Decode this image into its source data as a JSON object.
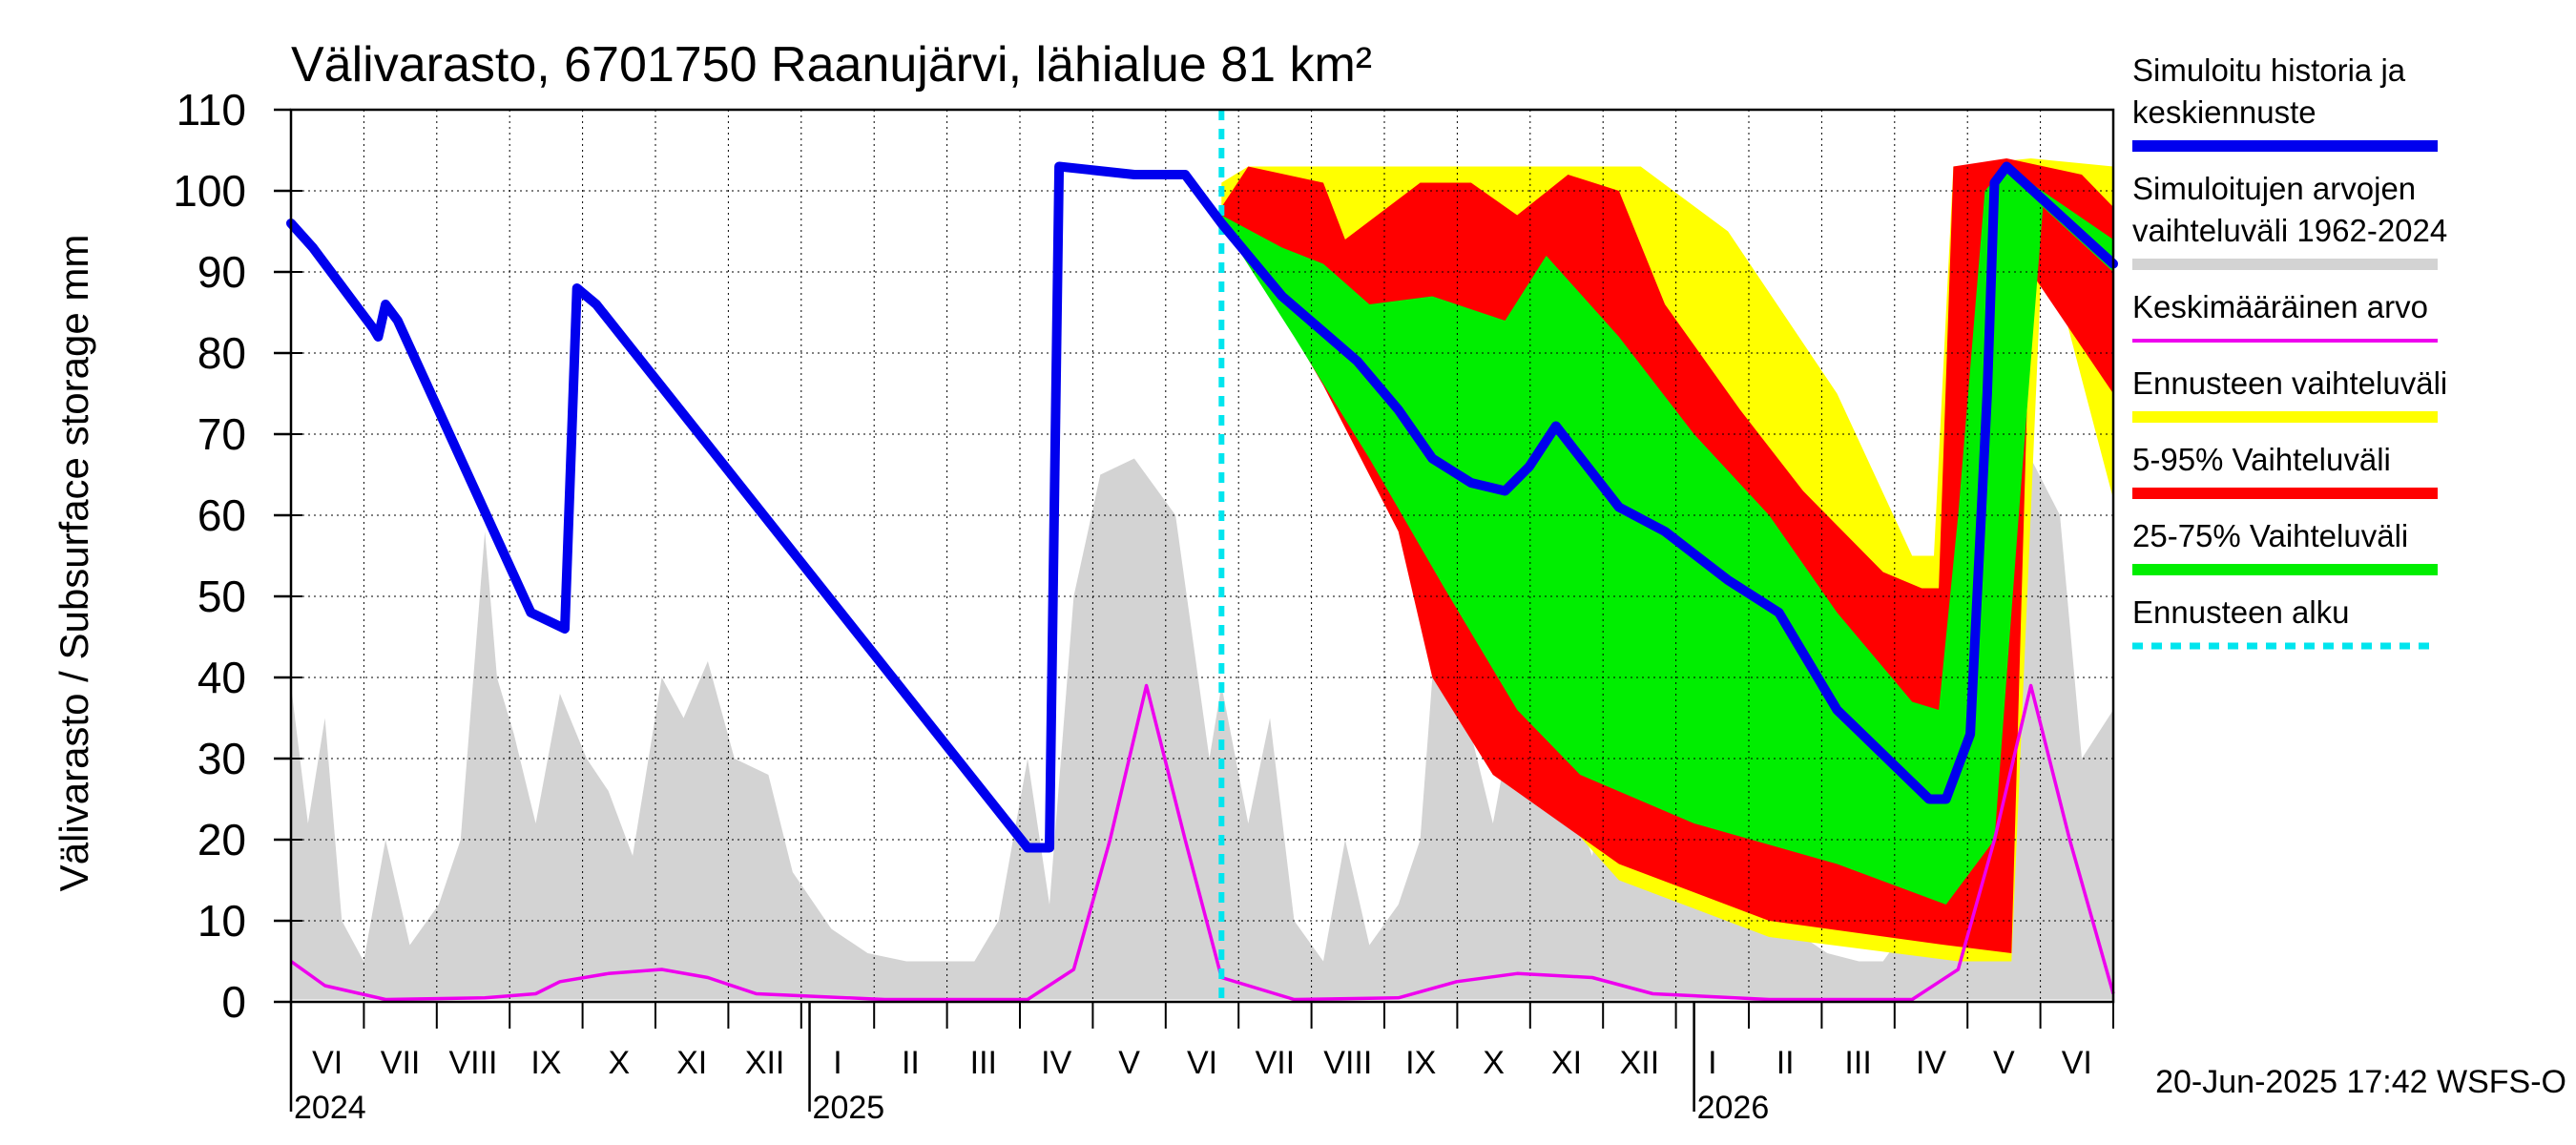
{
  "chart_data": {
    "type": "area",
    "title": "Välivarasto, 6701750 Raanujärvi, lähialue 81 km²",
    "ylabel": "Välivarasto / Subsurface storage  mm",
    "ylim": [
      0,
      110
    ],
    "yticks": [
      0,
      10,
      20,
      30,
      40,
      50,
      60,
      70,
      80,
      90,
      100,
      110
    ],
    "xlim": [
      "2024-06-01",
      "2026-06-23"
    ],
    "grid": true,
    "legend_position": "right",
    "forecast_start": "2025-06-20",
    "months": [
      "VI",
      "VII",
      "VIII",
      "IX",
      "X",
      "XI",
      "XII",
      "I",
      "II",
      "III",
      "IV",
      "V",
      "VI",
      "VII",
      "VIII",
      "IX",
      "X",
      "XI",
      "XII",
      "I",
      "II",
      "III",
      "IV",
      "V",
      "VI"
    ],
    "years": [
      {
        "label": "2024",
        "date": "2024-06-01"
      },
      {
        "label": "2025",
        "date": "2025-01-01"
      },
      {
        "label": "2026",
        "date": "2026-01-01"
      }
    ],
    "footer": "20-Jun-2025 17:42 WSFS-O",
    "colors": {
      "simulated": "#0000ee",
      "range_hist": "#d3d3d3",
      "mean": "#ee00ee",
      "forecast_range": "#ffff00",
      "p5_95": "#ff0000",
      "p25_75": "#00ee00",
      "forecast_start": "#00e5ee"
    },
    "legend": [
      {
        "label": "Simuloitu historia ja keskiennuste",
        "color": "#0000ee",
        "style": "thick"
      },
      {
        "label": "Simuloitujen arvojen vaihteluväli 1962-2024",
        "color": "#d3d3d3",
        "style": "thick"
      },
      {
        "label": "Keskimääräinen arvo",
        "color": "#ee00ee",
        "style": "thin"
      },
      {
        "label": "Ennusteen vaihteluväli",
        "color": "#ffff00",
        "style": "thick"
      },
      {
        "label": "5-95% Vaihteluväli",
        "color": "#ff0000",
        "style": "thick"
      },
      {
        "label": "25-75% Vaihteluväli",
        "color": "#00ee00",
        "style": "thick"
      },
      {
        "label": "Ennusteen alku",
        "color": "#00e5ee",
        "style": "dashed"
      }
    ],
    "series": [
      {
        "name": "Simuloitu historia ja keskiennuste",
        "points": [
          [
            "2024-06-01",
            96
          ],
          [
            "2024-06-10",
            93
          ],
          [
            "2024-07-05",
            83
          ],
          [
            "2024-07-07",
            82
          ],
          [
            "2024-07-10",
            86
          ],
          [
            "2024-07-15",
            84
          ],
          [
            "2024-09-08",
            48
          ],
          [
            "2024-09-15",
            47
          ],
          [
            "2024-09-22",
            46
          ],
          [
            "2024-09-27",
            88
          ],
          [
            "2024-10-05",
            86
          ],
          [
            "2025-04-01",
            19
          ],
          [
            "2025-04-10",
            19
          ],
          [
            "2025-04-14",
            103
          ],
          [
            "2025-05-15",
            102
          ],
          [
            "2025-06-05",
            102
          ],
          [
            "2025-06-20",
            96
          ],
          [
            "2025-07-15",
            87
          ],
          [
            "2025-08-15",
            79
          ],
          [
            "2025-09-01",
            73
          ],
          [
            "2025-09-15",
            67
          ],
          [
            "2025-10-01",
            64
          ],
          [
            "2025-10-15",
            63
          ],
          [
            "2025-10-25",
            66
          ],
          [
            "2025-11-05",
            71
          ],
          [
            "2025-12-01",
            61
          ],
          [
            "2025-12-20",
            58
          ],
          [
            "2026-01-15",
            52
          ],
          [
            "2026-02-05",
            48
          ],
          [
            "2026-03-01",
            36
          ],
          [
            "2026-04-08",
            25
          ],
          [
            "2026-04-15",
            25
          ],
          [
            "2026-04-25",
            33
          ],
          [
            "2026-05-02",
            75
          ],
          [
            "2026-05-05",
            101
          ],
          [
            "2026-05-10",
            103
          ],
          [
            "2026-06-23",
            91
          ]
        ]
      },
      {
        "name": "Keskimääräinen arvo",
        "points": [
          [
            "2024-06-01",
            5
          ],
          [
            "2024-06-15",
            2
          ],
          [
            "2024-07-10",
            0.3
          ],
          [
            "2024-08-20",
            0.5
          ],
          [
            "2024-09-10",
            1
          ],
          [
            "2024-09-20",
            2.5
          ],
          [
            "2024-10-10",
            3.5
          ],
          [
            "2024-11-01",
            4
          ],
          [
            "2024-11-20",
            3
          ],
          [
            "2024-12-10",
            1
          ],
          [
            "2025-02-01",
            0.3
          ],
          [
            "2025-04-01",
            0.3
          ],
          [
            "2025-04-20",
            4
          ],
          [
            "2025-05-05",
            20
          ],
          [
            "2025-05-20",
            39
          ],
          [
            "2025-06-05",
            20
          ],
          [
            "2025-06-20",
            3
          ],
          [
            "2025-07-20",
            0.3
          ],
          [
            "2025-09-01",
            0.5
          ],
          [
            "2025-09-25",
            2.5
          ],
          [
            "2025-10-20",
            3.5
          ],
          [
            "2025-11-20",
            3
          ],
          [
            "2025-12-15",
            1
          ],
          [
            "2026-02-01",
            0.3
          ],
          [
            "2026-04-01",
            0.3
          ],
          [
            "2026-04-20",
            4
          ],
          [
            "2026-05-05",
            20
          ],
          [
            "2026-05-20",
            39
          ],
          [
            "2026-06-05",
            20
          ],
          [
            "2026-06-23",
            1
          ]
        ]
      }
    ],
    "bands": [
      {
        "name": "Ennusteen vaihteluväli",
        "upper": [
          [
            "2025-06-20",
            101
          ],
          [
            "2025-07-01",
            103
          ],
          [
            "2025-09-01",
            103
          ],
          [
            "2025-11-01",
            103
          ],
          [
            "2025-12-10",
            103
          ],
          [
            "2026-01-15",
            95
          ],
          [
            "2026-03-01",
            75
          ],
          [
            "2026-04-01",
            55
          ],
          [
            "2026-04-10",
            55
          ],
          [
            "2026-04-18",
            103
          ],
          [
            "2026-05-20",
            104
          ],
          [
            "2026-06-23",
            103
          ]
        ],
        "lower": [
          [
            "2026-06-23",
            62
          ],
          [
            "2026-05-25",
            95
          ],
          [
            "2026-05-12",
            5
          ],
          [
            "2026-04-20",
            5
          ],
          [
            "2026-02-01",
            8
          ],
          [
            "2025-12-01",
            15
          ],
          [
            "2025-11-01",
            25
          ],
          [
            "2025-10-01",
            38
          ],
          [
            "2025-09-01",
            60
          ],
          [
            "2025-08-01",
            77
          ],
          [
            "2025-07-01",
            91
          ],
          [
            "2025-06-20",
            96
          ]
        ]
      },
      {
        "name": "5-95% Vaihteluväli",
        "upper": [
          [
            "2025-06-20",
            98
          ],
          [
            "2025-07-01",
            103
          ],
          [
            "2025-08-01",
            101
          ],
          [
            "2025-08-10",
            94
          ],
          [
            "2025-09-10",
            101
          ],
          [
            "2025-10-01",
            101
          ],
          [
            "2025-10-20",
            97
          ],
          [
            "2025-11-10",
            102
          ],
          [
            "2025-12-01",
            100
          ],
          [
            "2025-12-20",
            86
          ],
          [
            "2026-01-20",
            73
          ],
          [
            "2026-02-15",
            63
          ],
          [
            "2026-03-20",
            53
          ],
          [
            "2026-04-05",
            51
          ],
          [
            "2026-04-12",
            51
          ],
          [
            "2026-04-18",
            103
          ],
          [
            "2026-05-10",
            104
          ],
          [
            "2026-06-10",
            102
          ],
          [
            "2026-06-23",
            98
          ]
        ],
        "lower": [
          [
            "2026-06-23",
            75
          ],
          [
            "2026-05-20",
            90
          ],
          [
            "2026-05-12",
            6
          ],
          [
            "2026-04-15",
            7
          ],
          [
            "2026-02-01",
            10
          ],
          [
            "2025-12-01",
            17
          ],
          [
            "2025-10-10",
            28
          ],
          [
            "2025-09-15",
            40
          ],
          [
            "2025-09-01",
            58
          ],
          [
            "2025-08-01",
            76
          ],
          [
            "2025-07-01",
            92
          ],
          [
            "2025-06-20",
            97
          ]
        ]
      },
      {
        "name": "25-75% Vaihteluväli",
        "upper": [
          [
            "2025-06-20",
            97
          ],
          [
            "2025-07-15",
            93
          ],
          [
            "2025-08-01",
            91
          ],
          [
            "2025-08-20",
            86
          ],
          [
            "2025-09-15",
            87
          ],
          [
            "2025-10-15",
            84
          ],
          [
            "2025-11-01",
            92
          ],
          [
            "2025-12-01",
            82
          ],
          [
            "2026-01-01",
            70
          ],
          [
            "2026-02-01",
            60
          ],
          [
            "2026-03-01",
            48
          ],
          [
            "2026-04-01",
            37
          ],
          [
            "2026-04-12",
            36
          ],
          [
            "2026-04-20",
            60
          ],
          [
            "2026-05-01",
            100
          ],
          [
            "2026-05-10",
            103
          ],
          [
            "2026-06-23",
            94
          ]
        ],
        "lower": [
          [
            "2026-06-23",
            90
          ],
          [
            "2026-05-25",
            98
          ],
          [
            "2026-05-15",
            60
          ],
          [
            "2026-05-05",
            20
          ],
          [
            "2026-04-15",
            12
          ],
          [
            "2026-03-01",
            17
          ],
          [
            "2026-01-01",
            22
          ],
          [
            "2025-11-15",
            28
          ],
          [
            "2025-10-20",
            36
          ],
          [
            "2025-09-20",
            51
          ],
          [
            "2025-08-20",
            67
          ],
          [
            "2025-07-20",
            82
          ],
          [
            "2025-06-20",
            96
          ]
        ]
      }
    ],
    "hist_range_upper": [
      [
        "2024-06-01",
        39
      ],
      [
        "2024-06-08",
        22
      ],
      [
        "2024-06-15",
        35
      ],
      [
        "2024-06-22",
        10
      ],
      [
        "2024-07-01",
        5
      ],
      [
        "2024-07-10",
        20
      ],
      [
        "2024-07-20",
        7
      ],
      [
        "2024-08-01",
        12
      ],
      [
        "2024-08-10",
        20
      ],
      [
        "2024-08-20",
        58
      ],
      [
        "2024-08-25",
        40
      ],
      [
        "2024-09-01",
        33
      ],
      [
        "2024-09-10",
        22
      ],
      [
        "2024-09-20",
        38
      ],
      [
        "2024-10-01",
        30
      ],
      [
        "2024-10-10",
        26
      ],
      [
        "2024-10-20",
        18
      ],
      [
        "2024-11-01",
        40
      ],
      [
        "2024-11-10",
        35
      ],
      [
        "2024-11-20",
        42
      ],
      [
        "2024-12-01",
        30
      ],
      [
        "2024-12-15",
        28
      ],
      [
        "2024-12-25",
        16
      ],
      [
        "2025-01-10",
        9
      ],
      [
        "2025-01-25",
        6
      ],
      [
        "2025-02-10",
        5
      ],
      [
        "2025-02-25",
        5
      ],
      [
        "2025-03-10",
        5
      ],
      [
        "2025-03-20",
        10
      ],
      [
        "2025-04-01",
        30
      ],
      [
        "2025-04-10",
        12
      ],
      [
        "2025-04-20",
        50
      ],
      [
        "2025-05-01",
        65
      ],
      [
        "2025-05-15",
        67
      ],
      [
        "2025-06-01",
        60
      ],
      [
        "2025-06-15",
        30
      ],
      [
        "2025-06-20",
        39
      ],
      [
        "2025-07-01",
        22
      ],
      [
        "2025-07-10",
        35
      ],
      [
        "2025-07-20",
        10
      ],
      [
        "2025-08-01",
        5
      ],
      [
        "2025-08-10",
        20
      ],
      [
        "2025-08-20",
        7
      ],
      [
        "2025-09-01",
        12
      ],
      [
        "2025-09-10",
        20
      ],
      [
        "2025-09-20",
        60
      ],
      [
        "2025-09-25",
        40
      ],
      [
        "2025-10-01",
        33
      ],
      [
        "2025-10-10",
        22
      ],
      [
        "2025-10-20",
        38
      ],
      [
        "2025-11-01",
        30
      ],
      [
        "2025-11-10",
        26
      ],
      [
        "2025-11-20",
        18
      ],
      [
        "2025-12-01",
        40
      ],
      [
        "2025-12-10",
        35
      ],
      [
        "2025-12-20",
        42
      ],
      [
        "2026-01-01",
        30
      ],
      [
        "2026-01-15",
        28
      ],
      [
        "2026-01-25",
        16
      ],
      [
        "2026-02-10",
        9
      ],
      [
        "2026-02-25",
        6
      ],
      [
        "2026-03-10",
        5
      ],
      [
        "2026-03-20",
        5
      ],
      [
        "2026-04-01",
        10
      ],
      [
        "2026-04-10",
        30
      ],
      [
        "2026-04-20",
        12
      ],
      [
        "2026-05-01",
        50
      ],
      [
        "2026-05-10",
        65
      ],
      [
        "2026-05-20",
        67
      ],
      [
        "2026-06-01",
        60
      ],
      [
        "2026-06-10",
        30
      ],
      [
        "2026-06-23",
        36
      ]
    ],
    "hist_range_lower": [
      [
        "2026-06-23",
        0.3
      ],
      [
        "2025-06-20",
        0.3
      ],
      [
        "2024-06-01",
        0.3
      ]
    ]
  }
}
